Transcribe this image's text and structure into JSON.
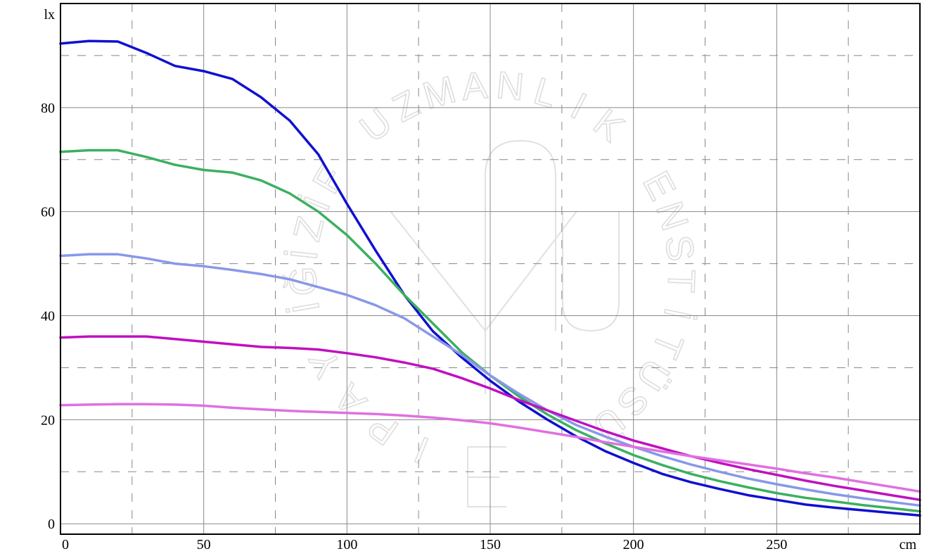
{
  "chart_data": {
    "type": "line",
    "xlabel": "cm",
    "ylabel": "lx",
    "xlim": [
      0,
      300
    ],
    "ylim": [
      -2,
      100
    ],
    "x_ticks": [
      0,
      50,
      100,
      150,
      200,
      250
    ],
    "y_ticks": [
      0,
      20,
      40,
      60,
      80
    ],
    "x_tick_labels": [
      "0",
      "50",
      "100",
      "150",
      "200",
      "250"
    ],
    "y_tick_labels": [
      "0",
      "20",
      "40",
      "60",
      "80"
    ],
    "grid": true,
    "legend": "none",
    "watermark_text": [
      "UZMANLIK",
      "ENSTİTÜSÜ",
      "YAPI",
      "FİZİĞİ"
    ],
    "series": [
      {
        "color": "#1010d0",
        "x": [
          0,
          10,
          20,
          30,
          40,
          50,
          60,
          70,
          80,
          90,
          100,
          110,
          120,
          130,
          140,
          150,
          160,
          170,
          180,
          190,
          200,
          210,
          220,
          230,
          240,
          250,
          260,
          270,
          280,
          290,
          300
        ],
        "values": [
          92.3,
          92.8,
          92.7,
          90.5,
          88,
          87,
          85.5,
          82,
          77.5,
          71,
          61.5,
          52.5,
          44,
          37,
          32,
          27.5,
          23.5,
          20,
          16.8,
          14,
          11.7,
          9.6,
          8.0,
          6.7,
          5.5,
          4.6,
          3.7,
          3.1,
          2.6,
          2.1,
          1.6
        ]
      },
      {
        "color": "#3cb060",
        "x": [
          0,
          10,
          20,
          30,
          40,
          50,
          60,
          70,
          80,
          90,
          100,
          110,
          120,
          130,
          140,
          150,
          160,
          170,
          180,
          190,
          200,
          210,
          220,
          230,
          240,
          250,
          260,
          270,
          280,
          290,
          300
        ],
        "values": [
          71.5,
          71.8,
          71.8,
          70.5,
          69,
          68,
          67.5,
          66,
          63.5,
          60,
          55.5,
          50,
          44,
          38.5,
          33,
          28.5,
          24.5,
          21,
          18,
          15.5,
          13.2,
          11.3,
          9.6,
          8.2,
          7.0,
          5.9,
          5.0,
          4.3,
          3.6,
          3.0,
          2.4
        ]
      },
      {
        "color": "#8898e8",
        "x": [
          0,
          10,
          20,
          30,
          40,
          50,
          60,
          70,
          80,
          90,
          100,
          110,
          120,
          130,
          140,
          150,
          160,
          170,
          180,
          190,
          200,
          210,
          220,
          230,
          240,
          250,
          260,
          270,
          280,
          290,
          300
        ],
        "values": [
          51.5,
          51.8,
          51.8,
          51,
          50,
          49.5,
          48.8,
          48,
          47,
          45.5,
          44,
          42,
          39.5,
          36,
          32.5,
          28.5,
          25,
          21.8,
          19,
          16.8,
          14.8,
          13.0,
          11.4,
          10.0,
          8.7,
          7.6,
          6.6,
          5.7,
          4.9,
          4.2,
          3.5
        ]
      },
      {
        "color": "#c010c0",
        "x": [
          0,
          10,
          20,
          30,
          40,
          50,
          60,
          70,
          80,
          90,
          100,
          110,
          120,
          130,
          140,
          150,
          160,
          170,
          180,
          190,
          200,
          210,
          220,
          230,
          240,
          250,
          260,
          270,
          280,
          290,
          300
        ],
        "values": [
          35.8,
          36,
          36,
          36,
          35.5,
          35,
          34.5,
          34,
          33.8,
          33.5,
          32.8,
          32,
          31,
          29.8,
          28,
          26,
          23.8,
          21.8,
          19.8,
          17.8,
          16,
          14.5,
          13.0,
          11.7,
          10.5,
          9.4,
          8.3,
          7.3,
          6.4,
          5.5,
          4.6
        ]
      },
      {
        "color": "#e070e0",
        "x": [
          0,
          10,
          20,
          30,
          40,
          50,
          60,
          70,
          80,
          90,
          100,
          110,
          120,
          130,
          140,
          150,
          160,
          170,
          180,
          190,
          200,
          210,
          220,
          230,
          240,
          250,
          260,
          270,
          280,
          290,
          300
        ],
        "values": [
          22.8,
          22.9,
          23,
          23,
          22.9,
          22.7,
          22.3,
          22,
          21.7,
          21.5,
          21.3,
          21.1,
          20.8,
          20.4,
          19.9,
          19.3,
          18.5,
          17.6,
          16.7,
          15.7,
          14.8,
          13.9,
          13.0,
          12.2,
          11.4,
          10.6,
          9.7,
          8.9,
          8.0,
          7.1,
          6.2
        ]
      }
    ]
  }
}
